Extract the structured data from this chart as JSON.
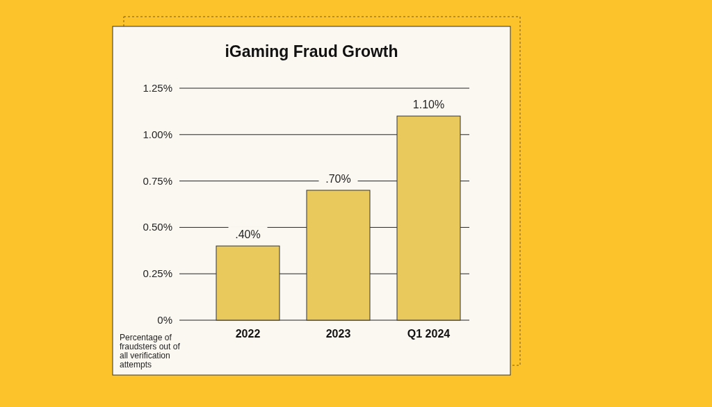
{
  "chart_data": {
    "type": "bar",
    "title": "iGaming Fraud Growth",
    "categories": [
      "2022",
      "2023",
      "Q1 2024"
    ],
    "values": [
      0.4,
      0.7,
      1.1
    ],
    "value_labels": [
      ".40%",
      ".70%",
      "1.10%"
    ],
    "color": "#e9c85c",
    "ylim": [
      0,
      1.25
    ],
    "yticks": [
      {
        "value": 0,
        "label": "0%"
      },
      {
        "value": 0.25,
        "label": "0.25%"
      },
      {
        "value": 0.5,
        "label": "0.50%"
      },
      {
        "value": 0.75,
        "label": "0.75%"
      },
      {
        "value": 1,
        "label": "1.00%"
      },
      {
        "value": 1.25,
        "label": "1.25%"
      }
    ],
    "grid": "y",
    "annotations": [
      "Percentage of fraudsters out of all verification attempts"
    ]
  }
}
